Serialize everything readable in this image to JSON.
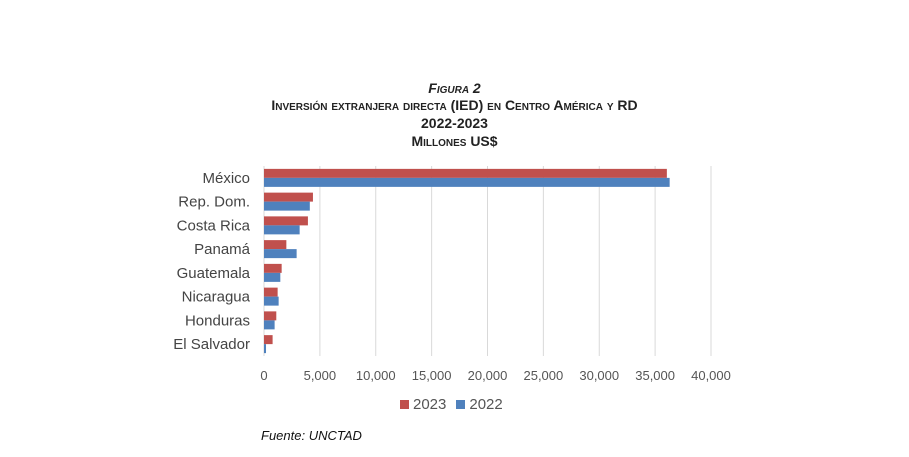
{
  "title": {
    "figure": "Figura 2",
    "line1": "Inversión extranjera directa (IED) en Centro América y RD",
    "line2": "2022-2023",
    "line3": "Millones US$"
  },
  "source": "Fuente: UNCTAD",
  "chart_data": {
    "type": "bar",
    "orientation": "horizontal",
    "categories": [
      "México",
      "Rep. Dom.",
      "Costa Rica",
      "Panamá",
      "Guatemala",
      "Nicaragua",
      "Honduras",
      "El Salvador"
    ],
    "series": [
      {
        "name": "2023",
        "color": "#c0504d",
        "values": [
          36050,
          4380,
          3930,
          2000,
          1580,
          1220,
          1100,
          770
        ]
      },
      {
        "name": "2022",
        "color": "#4f81bd",
        "values": [
          36300,
          4100,
          3190,
          2920,
          1460,
          1310,
          950,
          180
        ]
      }
    ],
    "xlim": [
      0,
      40000
    ],
    "xticks": [
      0,
      5000,
      10000,
      15000,
      20000,
      25000,
      30000,
      35000,
      40000
    ],
    "xtick_labels": [
      "0",
      "5,000",
      "10,000",
      "15,000",
      "20,000",
      "25,000",
      "30,000",
      "35,000",
      "40,000"
    ],
    "grid": true,
    "legend": "bottom",
    "xlabel": "",
    "ylabel": ""
  }
}
